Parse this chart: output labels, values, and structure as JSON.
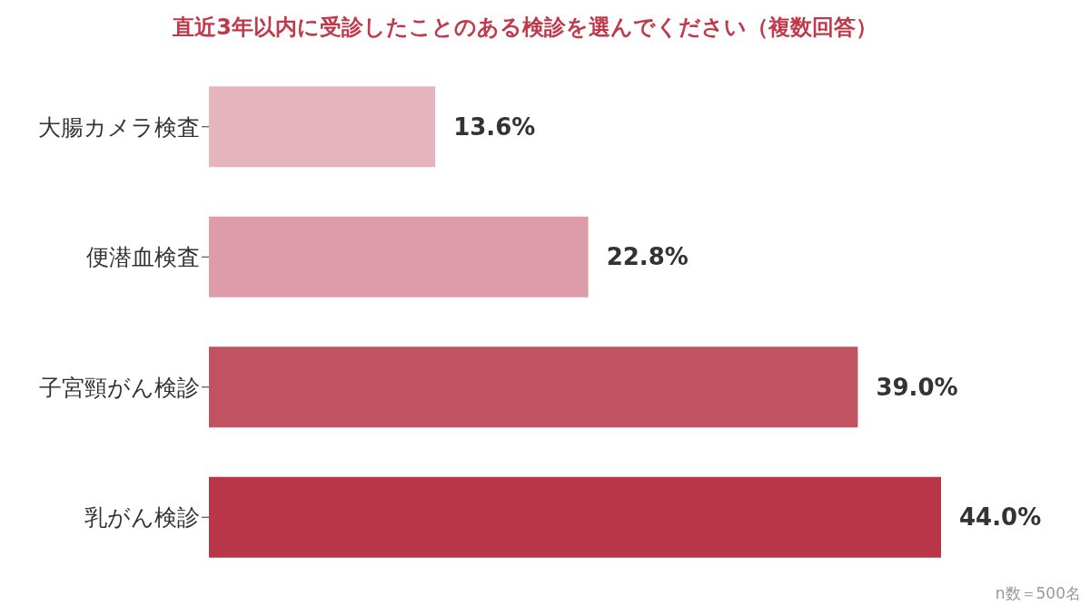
{
  "chart_data": {
    "type": "bar",
    "orientation": "horizontal",
    "title": "直近3年以内に受診したことのある検診を選んでください（複数回答）",
    "categories": [
      "大腸カメラ検査",
      "便潜血検査",
      "子宮頸がん検診",
      "乳がん検診"
    ],
    "values": [
      13.6,
      22.8,
      39.0,
      44.0
    ],
    "colors": [
      "#e6b4be",
      "#de9caa",
      "#c05262",
      "#b83648"
    ],
    "value_labels": [
      "13.6%",
      "22.8%",
      "39.0%",
      "44.0%"
    ],
    "tick_labels": "y",
    "annotations": [
      "n数＝500名"
    ]
  }
}
